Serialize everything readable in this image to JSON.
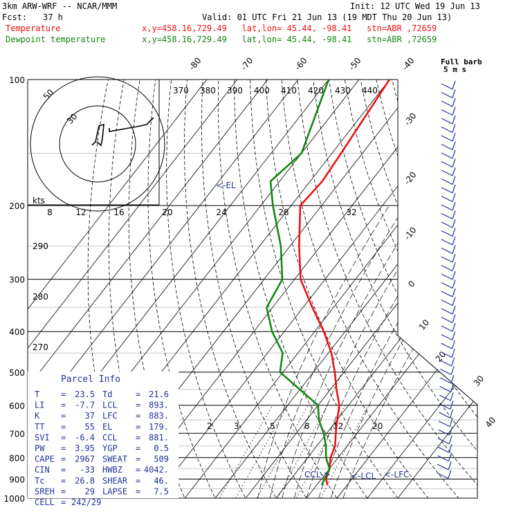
{
  "header": {
    "model": "3km ARW-WRF -- NCAR/MMM",
    "init": "Init: 12 UTC Wed 19 Jun 13",
    "fcst_label": "Fcst:",
    "fcst_value": "37 h",
    "valid": "Valid: 01 UTC Fri 21 Jun 13 (19 MDT Thu 20 Jun 13)",
    "temp_label": "Temperature",
    "temp_info": "x,y=458.16,729.49   lat,lon= 45.44, -98.41   stn=ABR ,72659",
    "dew_label": "Dewpoint temperature",
    "dew_info": "x,y=458.16,729.49   lat,lon= 45.44, -98.41   stn=ABR ,72659",
    "full_barb_line1": "Full barb",
    "full_barb_line2": "5 m s"
  },
  "colors": {
    "temperature": "#ee1111",
    "dewpoint": "#118811",
    "parcel": "#223399",
    "grid": "#000000",
    "thin_grey": "#c8c8c8"
  },
  "chart_data": {
    "type": "line",
    "pressure_levels": [
      100,
      200,
      300,
      400,
      500,
      600,
      700,
      800,
      900,
      1000
    ],
    "skew_labels": [
      "-80",
      "-70",
      "-60",
      "-50",
      "-40",
      "-30",
      "-20",
      "-10",
      "0",
      "10",
      "20",
      "30",
      "40"
    ],
    "theta_labels": [
      "290",
      "280",
      "270"
    ],
    "theta_e_labels": [
      "370",
      "380",
      "390",
      "400",
      "410",
      "420",
      "430",
      "440"
    ],
    "mixing_ratio_labels": [
      "2",
      "3",
      "5",
      "8",
      "12",
      "20"
    ],
    "series": [
      {
        "name": "Temperature",
        "points": [
          [
            100,
            -60
          ],
          [
            150,
            -57
          ],
          [
            175,
            -56
          ],
          [
            200,
            -57
          ],
          [
            250,
            -47
          ],
          [
            300,
            -38
          ],
          [
            350,
            -27
          ],
          [
            400,
            -17
          ],
          [
            450,
            -9
          ],
          [
            500,
            -3
          ],
          [
            550,
            2
          ],
          [
            600,
            7
          ],
          [
            650,
            10
          ],
          [
            700,
            13
          ],
          [
            750,
            16
          ],
          [
            800,
            17.5
          ],
          [
            850,
            20
          ],
          [
            900,
            21.5
          ],
          [
            930,
            23.5
          ]
        ]
      },
      {
        "name": "Dewpoint temperature",
        "points": [
          [
            100,
            -80
          ],
          [
            150,
            -70
          ],
          [
            175,
            -73
          ],
          [
            200,
            -66
          ],
          [
            250,
            -53
          ],
          [
            300,
            -44
          ],
          [
            350,
            -42
          ],
          [
            400,
            -34
          ],
          [
            450,
            -25
          ],
          [
            500,
            -21
          ],
          [
            600,
            0
          ],
          [
            650,
            4
          ],
          [
            700,
            9
          ],
          [
            750,
            13
          ],
          [
            800,
            16
          ],
          [
            850,
            20
          ],
          [
            900,
            21
          ],
          [
            930,
            21.6
          ]
        ]
      }
    ]
  },
  "annotations": {
    "el": "<-EL",
    "ccl": "CCL->",
    "lcl": "<-LCL",
    "lfc": "<-LFC"
  },
  "hodograph": {
    "kts": "kts",
    "ring_labels": [
      "50",
      "30"
    ],
    "speed_ticks": [
      "8",
      "12",
      "16",
      "20",
      "24",
      "28",
      "32"
    ]
  },
  "parcel_info": {
    "title": "Parcel Info",
    "rows": [
      {
        "k1": "T",
        "v1": "23.5",
        "k2": "Td",
        "v2": "21.6"
      },
      {
        "k1": "LI",
        "v1": "-7.7",
        "k2": "LCL",
        "v2": "893."
      },
      {
        "k1": "K",
        "v1": "37",
        "k2": "LFC",
        "v2": "883."
      },
      {
        "k1": "TT",
        "v1": "55",
        "k2": "EL",
        "v2": "179."
      },
      {
        "k1": "SVI",
        "v1": "-6.4",
        "k2": "CCL",
        "v2": "881."
      },
      {
        "k1": "PW",
        "v1": "3.95",
        "k2": "YGP",
        "v2": "0.5"
      },
      {
        "k1": "CAPE",
        "v1": "2967",
        "k2": "SWEAT",
        "v2": "509"
      },
      {
        "k1": "CIN",
        "v1": "-33",
        "k2": "HWBZ",
        "v2": "4042."
      },
      {
        "k1": "Tc",
        "v1": "26.8",
        "k2": "SHEAR",
        "v2": "46."
      },
      {
        "k1": "SREH",
        "v1": "29",
        "k2": "LAPSE",
        "v2": "7.5"
      }
    ],
    "cell_label": "CELL",
    "cell_value": "242/29"
  }
}
